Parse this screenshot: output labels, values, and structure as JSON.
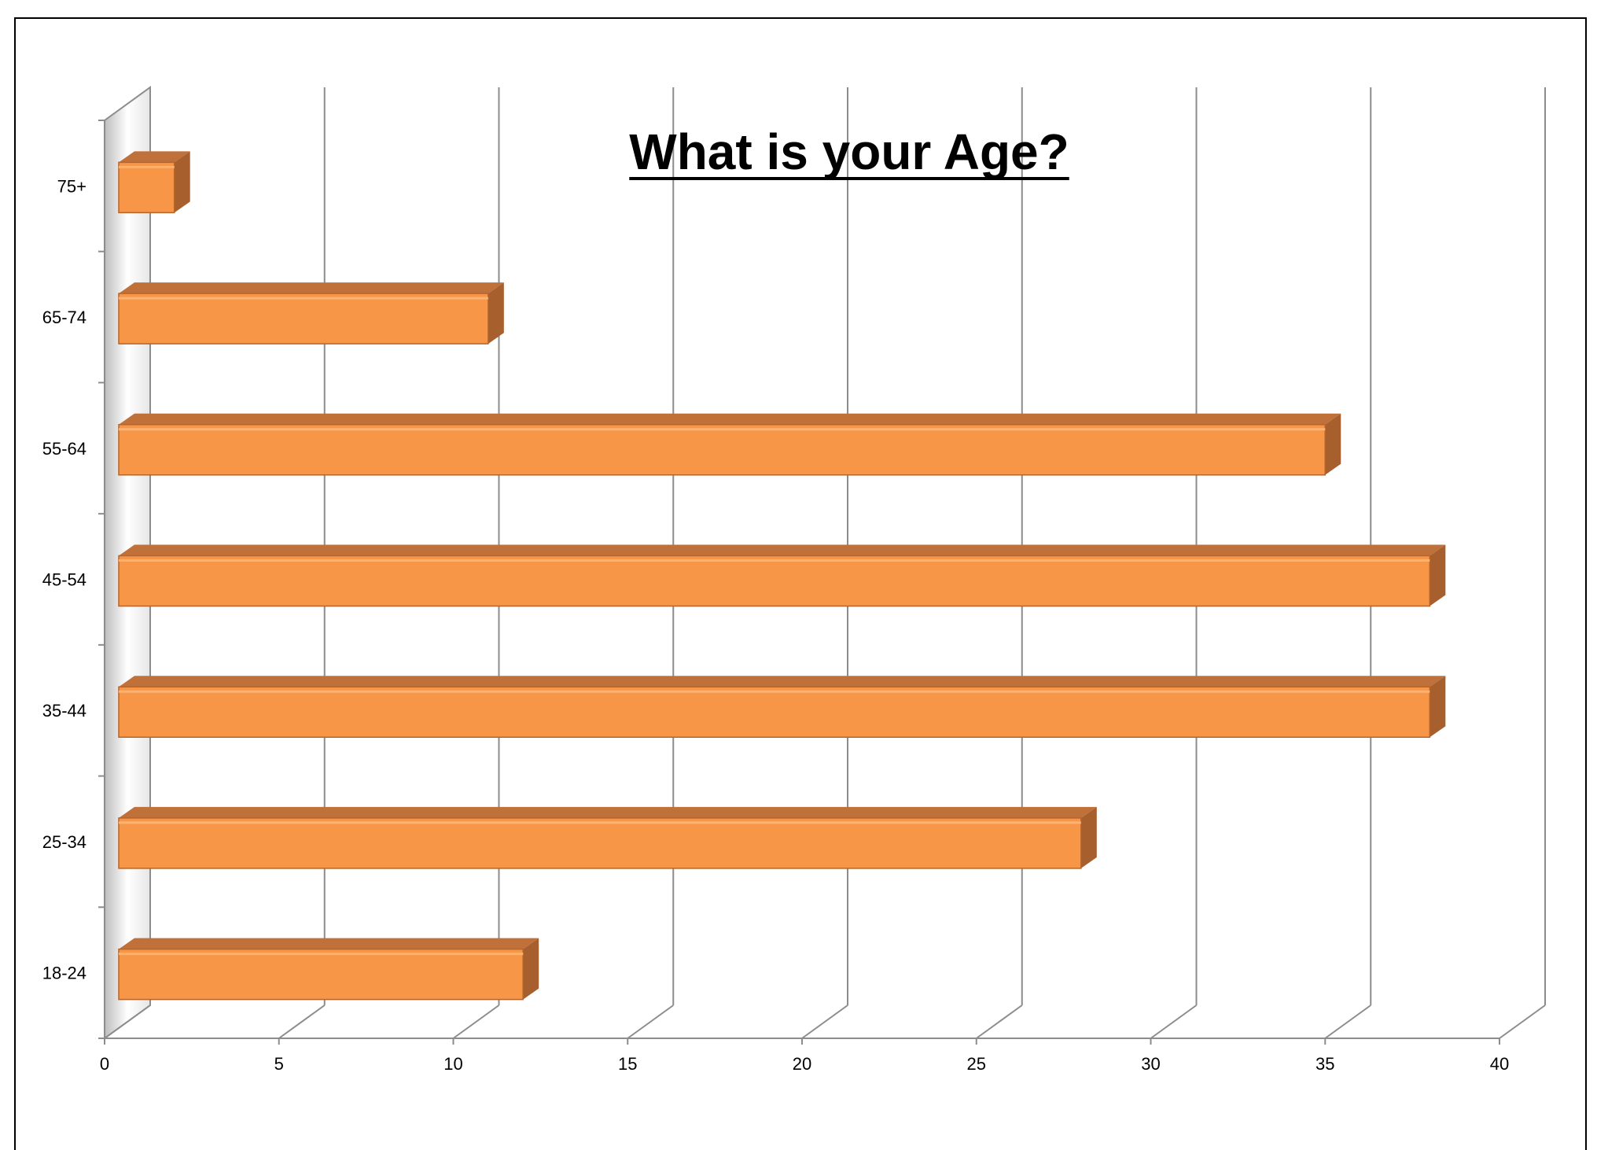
{
  "chart_data": {
    "type": "bar",
    "orientation": "horizontal",
    "title": "What is your Age?",
    "xlabel": "",
    "ylabel": "",
    "categories": [
      "18-24",
      "25-34",
      "35-44",
      "45-54",
      "55-64",
      "65-74",
      "75+"
    ],
    "values": [
      12,
      28,
      38,
      38,
      35,
      11,
      2
    ],
    "xlim": [
      0,
      40
    ],
    "x_ticks": [
      "0",
      "5",
      "10",
      "15",
      "20",
      "25",
      "30",
      "35",
      "40"
    ],
    "grid": "vertical",
    "legend": "none",
    "bar_color": "#F79646",
    "bar_top_color": "#C0713A",
    "bar_side_color": "#A85F2E"
  }
}
